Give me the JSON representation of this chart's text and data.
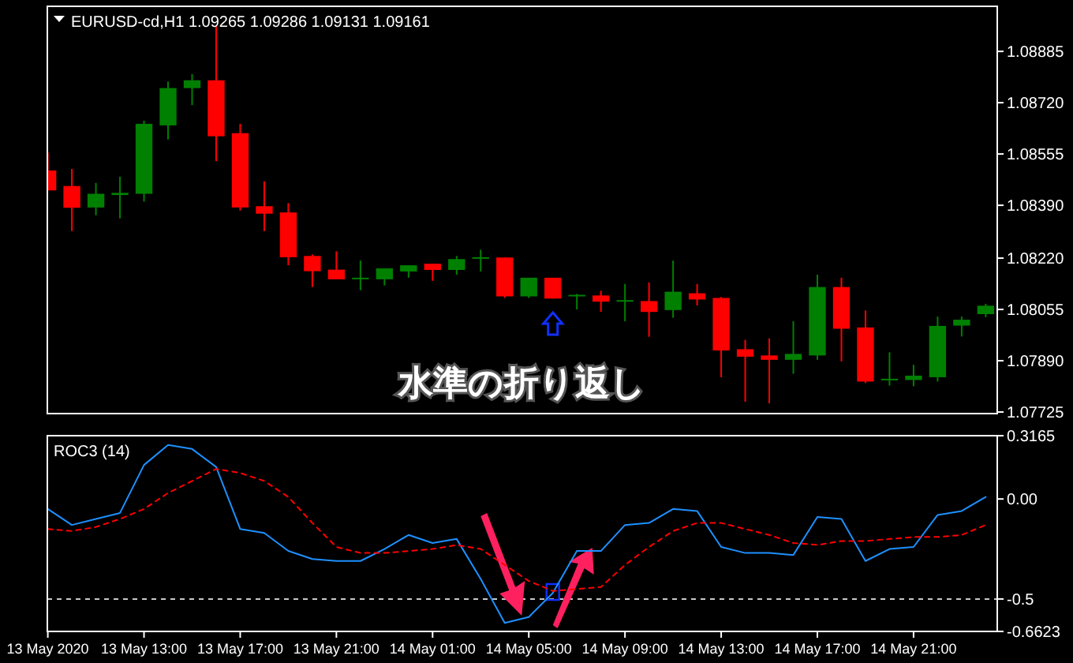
{
  "chart_data": [
    {
      "type": "candlestick",
      "title": "EURUSD-cd,H1  1.09265 1.09286 1.09131 1.09161",
      "categories": [
        null,
        null,
        null,
        null,
        null,
        null,
        null,
        null,
        null,
        null,
        null,
        null,
        null,
        null,
        null,
        null,
        null,
        null,
        null,
        null,
        null,
        null,
        null,
        null,
        null,
        null,
        null,
        null,
        null,
        null,
        null,
        null,
        null,
        null,
        null,
        null,
        null,
        null,
        null,
        null
      ],
      "ohlc": [
        [
          1.08502,
          1.0856,
          1.08438,
          1.08438
        ],
        [
          1.08452,
          1.08507,
          1.08307,
          1.08382
        ],
        [
          1.08383,
          1.08462,
          1.08358,
          1.08427
        ],
        [
          1.08423,
          1.08482,
          1.08348,
          1.0843
        ],
        [
          1.08427,
          1.08662,
          1.08402,
          1.08652
        ],
        [
          1.08647,
          1.08788,
          1.08602,
          1.08767
        ],
        [
          1.08767,
          1.08812,
          1.08712,
          1.08792
        ],
        [
          1.08792,
          1.08968,
          1.08532,
          1.08612
        ],
        [
          1.08622,
          1.08652,
          1.08373,
          1.08383
        ],
        [
          1.08387,
          1.08467,
          1.08307,
          1.08363
        ],
        [
          1.08367,
          1.08397,
          1.08197,
          1.08223
        ],
        [
          1.08227,
          1.08232,
          1.08127,
          1.08178
        ],
        [
          1.08183,
          1.08242,
          1.08152,
          1.08152
        ],
        [
          1.08153,
          1.08212,
          1.08117,
          1.08157
        ],
        [
          1.08152,
          1.08187,
          1.08132,
          1.08187
        ],
        [
          1.08177,
          1.08197,
          1.08157,
          1.08197
        ],
        [
          1.08202,
          1.08202,
          1.08147,
          1.08182
        ],
        [
          1.08182,
          1.08227,
          1.08167,
          1.08217
        ],
        [
          1.0822,
          1.08247,
          1.08177,
          1.08223
        ],
        [
          1.08222,
          1.08222,
          1.08092,
          1.08097
        ],
        [
          1.08097,
          1.08157,
          1.08092,
          1.08157
        ],
        [
          1.08157,
          1.08157,
          1.0809,
          1.0809
        ],
        [
          1.08098,
          1.08105,
          1.08055,
          1.08102
        ],
        [
          1.081,
          1.08115,
          1.08047,
          1.0808
        ],
        [
          1.08083,
          1.08137,
          1.08017,
          1.08085
        ],
        [
          1.08082,
          1.08142,
          1.07967,
          1.08047
        ],
        [
          1.08053,
          1.08212,
          1.08028,
          1.08112
        ],
        [
          1.08107,
          1.08137,
          1.08068,
          1.08087
        ],
        [
          1.08092,
          1.08095,
          1.07837,
          1.07923
        ],
        [
          1.07927,
          1.07957,
          1.07758,
          1.07903
        ],
        [
          1.07907,
          1.07962,
          1.07753,
          1.07893
        ],
        [
          1.07893,
          1.08017,
          1.07848,
          1.07912
        ],
        [
          1.07907,
          1.08167,
          1.07893,
          1.08127
        ],
        [
          1.08127,
          1.08157,
          1.07888,
          1.07993
        ],
        [
          1.07997,
          1.08052,
          1.07818,
          1.07823
        ],
        [
          1.07828,
          1.07917,
          1.0781,
          1.07832
        ],
        [
          1.07828,
          1.07877,
          1.07808,
          1.07842
        ],
        [
          1.07837,
          1.08032,
          1.07823,
          1.08002
        ],
        [
          1.08003,
          1.08032,
          1.07968,
          1.08022
        ],
        [
          1.0804,
          1.08073,
          1.0803,
          1.08067
        ]
      ],
      "colors": [
        "#ff0000",
        "#ff0000",
        "#008000",
        "#008000",
        "#008000",
        "#008000",
        "#008000",
        "#ff0000",
        "#ff0000",
        "#ff0000",
        "#ff0000",
        "#ff0000",
        "#ff0000",
        "#008000",
        "#008000",
        "#008000",
        "#ff0000",
        "#008000",
        "#008000",
        "#ff0000",
        "#008000",
        "#ff0000",
        "#008000",
        "#ff0000",
        "#008000",
        "#ff0000",
        "#008000",
        "#ff0000",
        "#ff0000",
        "#ff0000",
        "#ff0000",
        "#008000",
        "#008000",
        "#ff0000",
        "#ff0000",
        "#008000",
        "#008000",
        "#008000",
        "#008000",
        "#008000"
      ],
      "ylim": [
        1.0772,
        1.0903
      ],
      "yticks": [
        {
          "value": 1.08885,
          "label": "1.08885"
        },
        {
          "value": 1.0872,
          "label": "1.08720"
        },
        {
          "value": 1.08555,
          "label": "1.08555"
        },
        {
          "value": 1.0839,
          "label": "1.08390"
        },
        {
          "value": 1.0822,
          "label": "1.08220"
        },
        {
          "value": 1.08055,
          "label": "1.08055"
        },
        {
          "value": 1.0789,
          "label": "1.07890"
        },
        {
          "value": 1.07725,
          "label": "1.07725"
        }
      ],
      "tick_labels": "y",
      "annotations": [
        "水準の折り返し"
      ]
    },
    {
      "type": "line",
      "title": "ROC3 (14)",
      "categories": [
        "13 May 2020",
        null,
        null,
        null,
        "13 May 13:00",
        null,
        null,
        null,
        "13 May 17:00",
        null,
        null,
        null,
        "13 May 21:00",
        null,
        null,
        null,
        "14 May 01:00",
        null,
        null,
        null,
        "14 May 05:00",
        null,
        null,
        null,
        "14 May 09:00",
        null,
        null,
        null,
        "14 May 13:00",
        null,
        null,
        null,
        "14 May 17:00",
        null,
        null,
        null,
        "14 May 21:00",
        null,
        null,
        null
      ],
      "series": [
        {
          "color": "#1e90ff",
          "line_style": "solid",
          "values": [
            -0.05,
            -0.13,
            -0.1,
            -0.07,
            0.17,
            0.27,
            0.25,
            0.16,
            -0.15,
            -0.17,
            -0.26,
            -0.3,
            -0.31,
            -0.31,
            -0.25,
            -0.18,
            -0.22,
            -0.2,
            -0.4,
            -0.62,
            -0.59,
            -0.47,
            -0.26,
            -0.26,
            -0.13,
            -0.12,
            -0.05,
            -0.06,
            -0.24,
            -0.27,
            -0.27,
            -0.28,
            -0.09,
            -0.1,
            -0.31,
            -0.25,
            -0.24,
            -0.08,
            -0.06,
            0.01
          ]
        },
        {
          "color": "#ff0000",
          "line_style": "dashed",
          "values": [
            -0.15,
            -0.16,
            -0.14,
            -0.1,
            -0.05,
            0.03,
            0.09,
            0.15,
            0.13,
            0.09,
            0.01,
            -0.12,
            -0.24,
            -0.27,
            -0.27,
            -0.26,
            -0.25,
            -0.23,
            -0.25,
            -0.33,
            -0.41,
            -0.46,
            -0.45,
            -0.44,
            -0.33,
            -0.24,
            -0.16,
            -0.12,
            -0.12,
            -0.15,
            -0.18,
            -0.22,
            -0.23,
            -0.21,
            -0.21,
            -0.2,
            -0.19,
            -0.19,
            -0.18,
            -0.13
          ]
        }
      ],
      "ylim": [
        -0.6623,
        0.3165
      ],
      "yticks": [
        0.3165,
        {
          "value": 0,
          "label": "0.00"
        },
        -0.5,
        -0.6623
      ],
      "ref_lines": [
        {
          "axis": "y",
          "value": -0.5,
          "color": "#c8c8c8",
          "line_style": "dashed"
        }
      ]
    }
  ]
}
